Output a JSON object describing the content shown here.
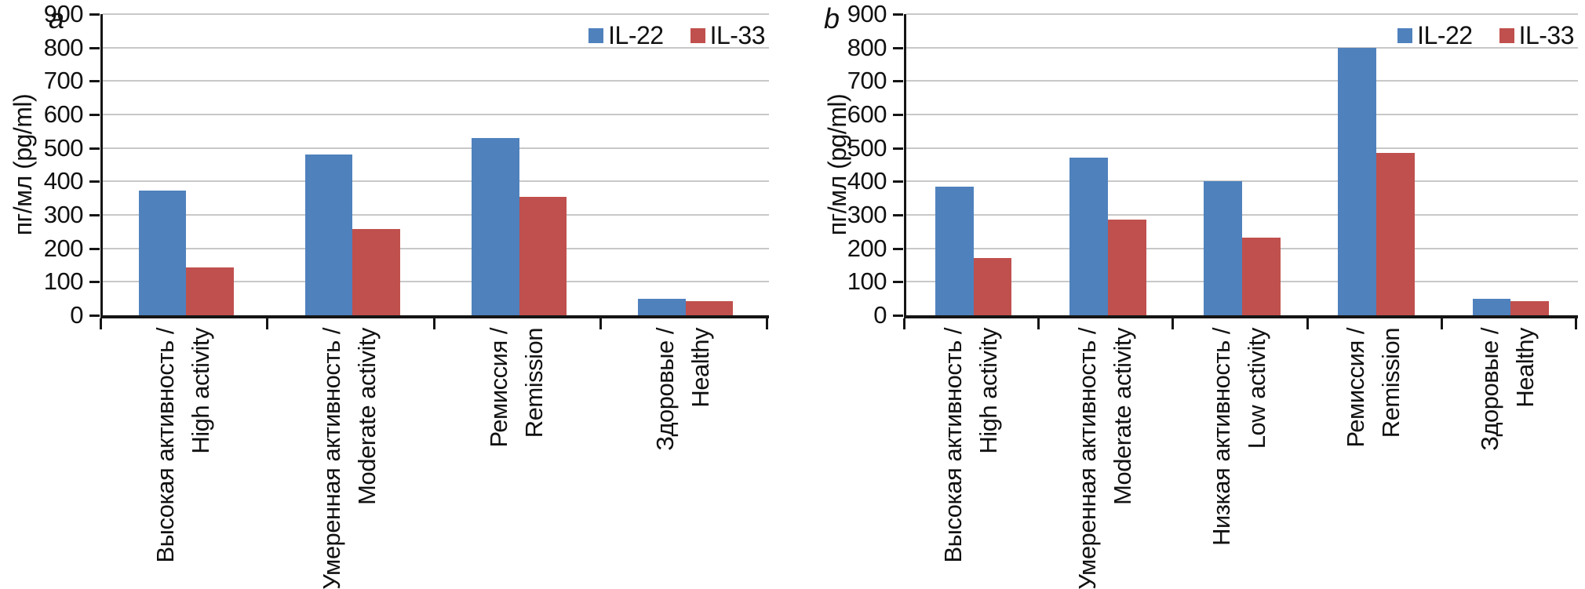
{
  "figure": {
    "background": "#ffffff",
    "axis_color": "#151515",
    "gridline_color": "#c8c8c8",
    "series_colors": {
      "il22": "#4F81BD",
      "il33": "#C0504D"
    }
  },
  "chart_data": [
    {
      "type": "bar",
      "panel_label": "a",
      "ylabel": "пг/мл (pg/ml)",
      "ylim": [
        0,
        900
      ],
      "ytick_step": 100,
      "grid": true,
      "legend_position": "top-right",
      "categories": [
        {
          "line1": "Высокая активность /",
          "line2": "High activity"
        },
        {
          "line1": "Умеренная активность /",
          "line2": "Moderate activity"
        },
        {
          "line1": "Ремиссия /",
          "line2": "Remission"
        },
        {
          "line1": "Здоровые /",
          "line2": "Healthy"
        }
      ],
      "series": [
        {
          "name": "IL-22",
          "color": "#4F81BD",
          "values": [
            372,
            480,
            530,
            50
          ]
        },
        {
          "name": "IL-33",
          "color": "#C0504D",
          "values": [
            142,
            257,
            355,
            42
          ]
        }
      ]
    },
    {
      "type": "bar",
      "panel_label": "b",
      "ylabel": "пг/мл (pg/ml)",
      "ylim": [
        0,
        900
      ],
      "ytick_step": 100,
      "grid": true,
      "legend_position": "top-right",
      "categories": [
        {
          "line1": "Высокая активность /",
          "line2": "High activity"
        },
        {
          "line1": "Умеренная активность /",
          "line2": "Moderate activity"
        },
        {
          "line1": "Низкая активность /",
          "line2": "Low activity"
        },
        {
          "line1": "Ремиссия /",
          "line2": "Remission"
        },
        {
          "line1": "Здоровые /",
          "line2": "Healthy"
        }
      ],
      "series": [
        {
          "name": "IL-22",
          "color": "#4F81BD",
          "values": [
            385,
            472,
            400,
            800,
            50
          ]
        },
        {
          "name": "IL-33",
          "color": "#C0504D",
          "values": [
            172,
            285,
            233,
            485,
            42
          ]
        }
      ]
    }
  ]
}
